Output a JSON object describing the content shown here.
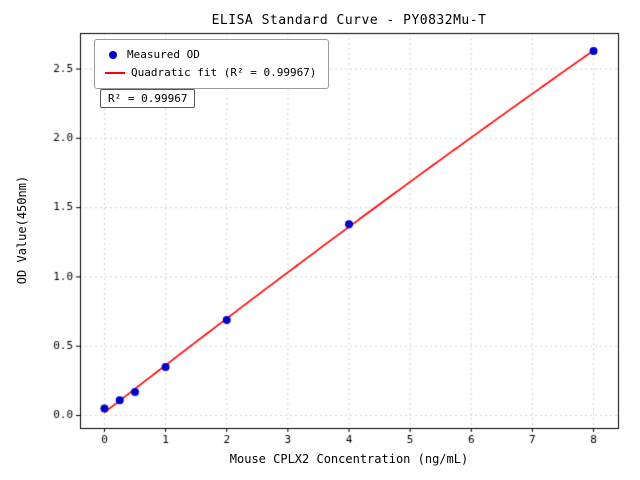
{
  "chart_data": {
    "type": "scatter",
    "title": "ELISA Standard Curve - PY0832Mu-T",
    "xlabel": "Mouse CPLX2 Concentration (ng/mL)",
    "ylabel": "OD Value(450nm)",
    "series_label": "Measured OD",
    "fit": {
      "type": "quadratic",
      "label": "Quadratic fit (R² = 0.99967)",
      "r_squared": 0.99967
    },
    "annotation": "R² = 0.99967",
    "x": [
      0,
      0.25,
      0.5,
      1,
      2,
      4,
      8
    ],
    "y": [
      0.05,
      0.11,
      0.17,
      0.35,
      0.69,
      1.38,
      2.63
    ],
    "xticks": [
      0,
      1,
      2,
      3,
      4,
      5,
      6,
      7,
      8
    ],
    "yticks": [
      0.0,
      0.5,
      1.0,
      1.5,
      2.0,
      2.5
    ],
    "xlim": [
      -0.4,
      8.4
    ],
    "ylim": [
      -0.09,
      2.76
    ],
    "grid": true,
    "grid_style": "dashed",
    "legend_position": "upper left",
    "colors": {
      "points": "#0000cd",
      "fit_line": "#ff0000",
      "grid": "#c9c9c9",
      "axes": "#000000"
    }
  }
}
